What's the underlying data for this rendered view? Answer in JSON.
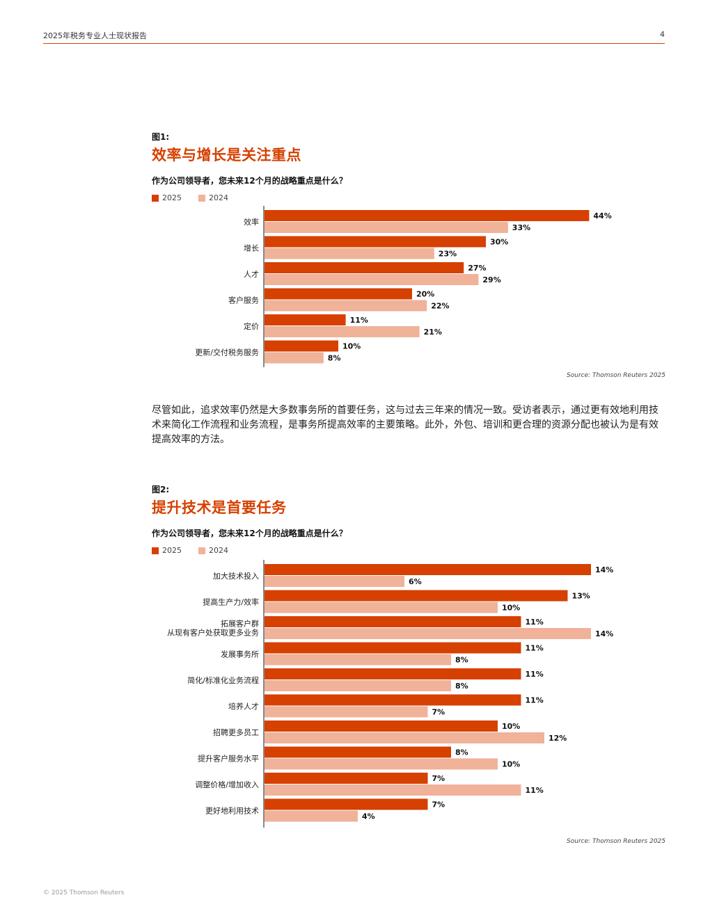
{
  "header": {
    "title": "2025年税务专业人士现状报告",
    "page": "4"
  },
  "colors": {
    "accent": "#d64000",
    "series_2025": "#d64000",
    "series_2024": "#f0b299"
  },
  "figures": [
    {
      "label": "图1:",
      "title": "效率与增长是关注重点",
      "question": "作为公司领导者，您未来12个月的战略重点是什么？",
      "legend": [
        "2025",
        "2024"
      ],
      "source": "Source: Thomson Reuters 2025"
    },
    {
      "label": "图2:",
      "title": "提升技术是首要任务",
      "question": "作为公司领导者，您未来12个月的战略重点是什么？",
      "legend": [
        "2025",
        "2024"
      ],
      "source": "Source: Thomson Reuters 2025"
    }
  ],
  "body_text": "尽管如此，追求效率仍然是大多数事务所的首要任务，这与过去三年来的情况一致。受访者表示，通过更有效地利用技术来简化工作流程和业务流程，是事务所提高效率的主要策略。此外，外包、培训和更合理的资源分配也被认为是有效提高效率的方法。",
  "footer": "© 2025 Thomson Reuters",
  "chart_data": [
    {
      "type": "bar",
      "orientation": "horizontal",
      "categories": [
        "效率",
        "增长",
        "人才",
        "客户服务",
        "定价",
        "更新/交付税务服务"
      ],
      "series": [
        {
          "name": "2025",
          "values": [
            44,
            30,
            27,
            20,
            11,
            10
          ]
        },
        {
          "name": "2024",
          "values": [
            33,
            23,
            29,
            22,
            21,
            8
          ]
        }
      ],
      "unit": "%",
      "xlim": [
        0,
        50
      ],
      "grid": false,
      "legend_position": "top-left"
    },
    {
      "type": "bar",
      "orientation": "horizontal",
      "categories": [
        "加大技术投入",
        "提高生产力/效率",
        "拓展客户群\n从现有客户处获取更多业务",
        "发展事务所",
        "简化/标准化业务流程",
        "培养人才",
        "招聘更多员工",
        "提升客户服务水平",
        "调整价格/增加收入",
        "更好地利用技术"
      ],
      "series": [
        {
          "name": "2025",
          "values": [
            14,
            13,
            11,
            11,
            11,
            11,
            10,
            8,
            7,
            7
          ]
        },
        {
          "name": "2024",
          "values": [
            6,
            10,
            14,
            8,
            8,
            7,
            12,
            10,
            11,
            4
          ]
        }
      ],
      "unit": "%",
      "xlim": [
        0,
        16
      ],
      "grid": false,
      "legend_position": "top-left"
    }
  ]
}
